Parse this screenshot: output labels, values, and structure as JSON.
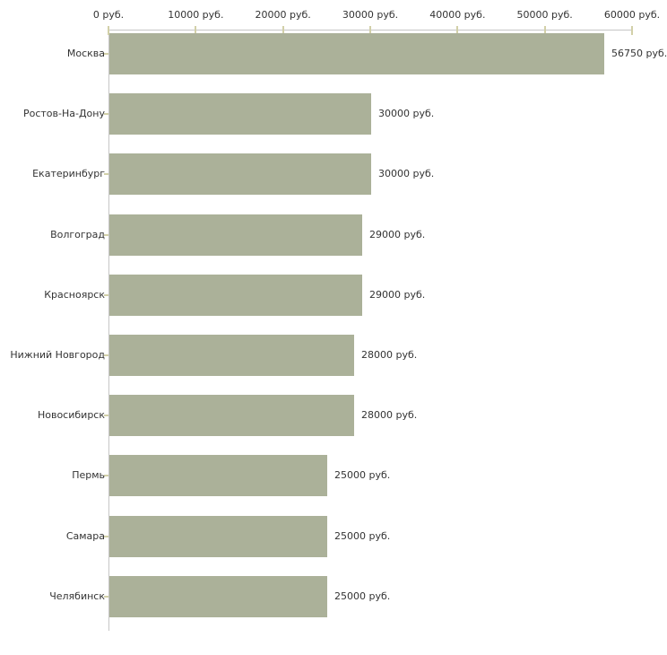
{
  "chart_data": {
    "type": "bar",
    "orientation": "horizontal",
    "title": "",
    "xlabel": "",
    "ylabel": "",
    "xlim": [
      0,
      60000
    ],
    "grid": false,
    "legend": false,
    "categories": [
      "Москва",
      "Ростов-На-Дону",
      "Екатеринбург",
      "Волгоград",
      "Красноярск",
      "Нижний Новгород",
      "Новосибирск",
      "Пермь",
      "Самара",
      "Челябинск"
    ],
    "values": [
      56750,
      30000,
      30000,
      29000,
      29000,
      28000,
      28000,
      25000,
      25000,
      25000
    ],
    "value_labels": [
      "56750 руб.",
      "30000 руб.",
      "30000 руб.",
      "29000 руб.",
      "29000 руб.",
      "28000 руб.",
      "28000 руб.",
      "25000 руб.",
      "25000 руб.",
      "25000 руб."
    ],
    "x_ticks": [
      {
        "value": 0,
        "label": "0 руб."
      },
      {
        "value": 10000,
        "label": "10000 руб."
      },
      {
        "value": 20000,
        "label": "20000 руб."
      },
      {
        "value": 30000,
        "label": "30000 руб."
      },
      {
        "value": 40000,
        "label": "40000 руб."
      },
      {
        "value": 50000,
        "label": "50000 руб."
      },
      {
        "value": 60000,
        "label": "60000 руб."
      }
    ],
    "colors": {
      "bar": "#abb199",
      "axis_line": "#c6c6c6",
      "tick_mark": "#d2d0a8",
      "text": "#333333",
      "background": "#ffffff"
    }
  }
}
